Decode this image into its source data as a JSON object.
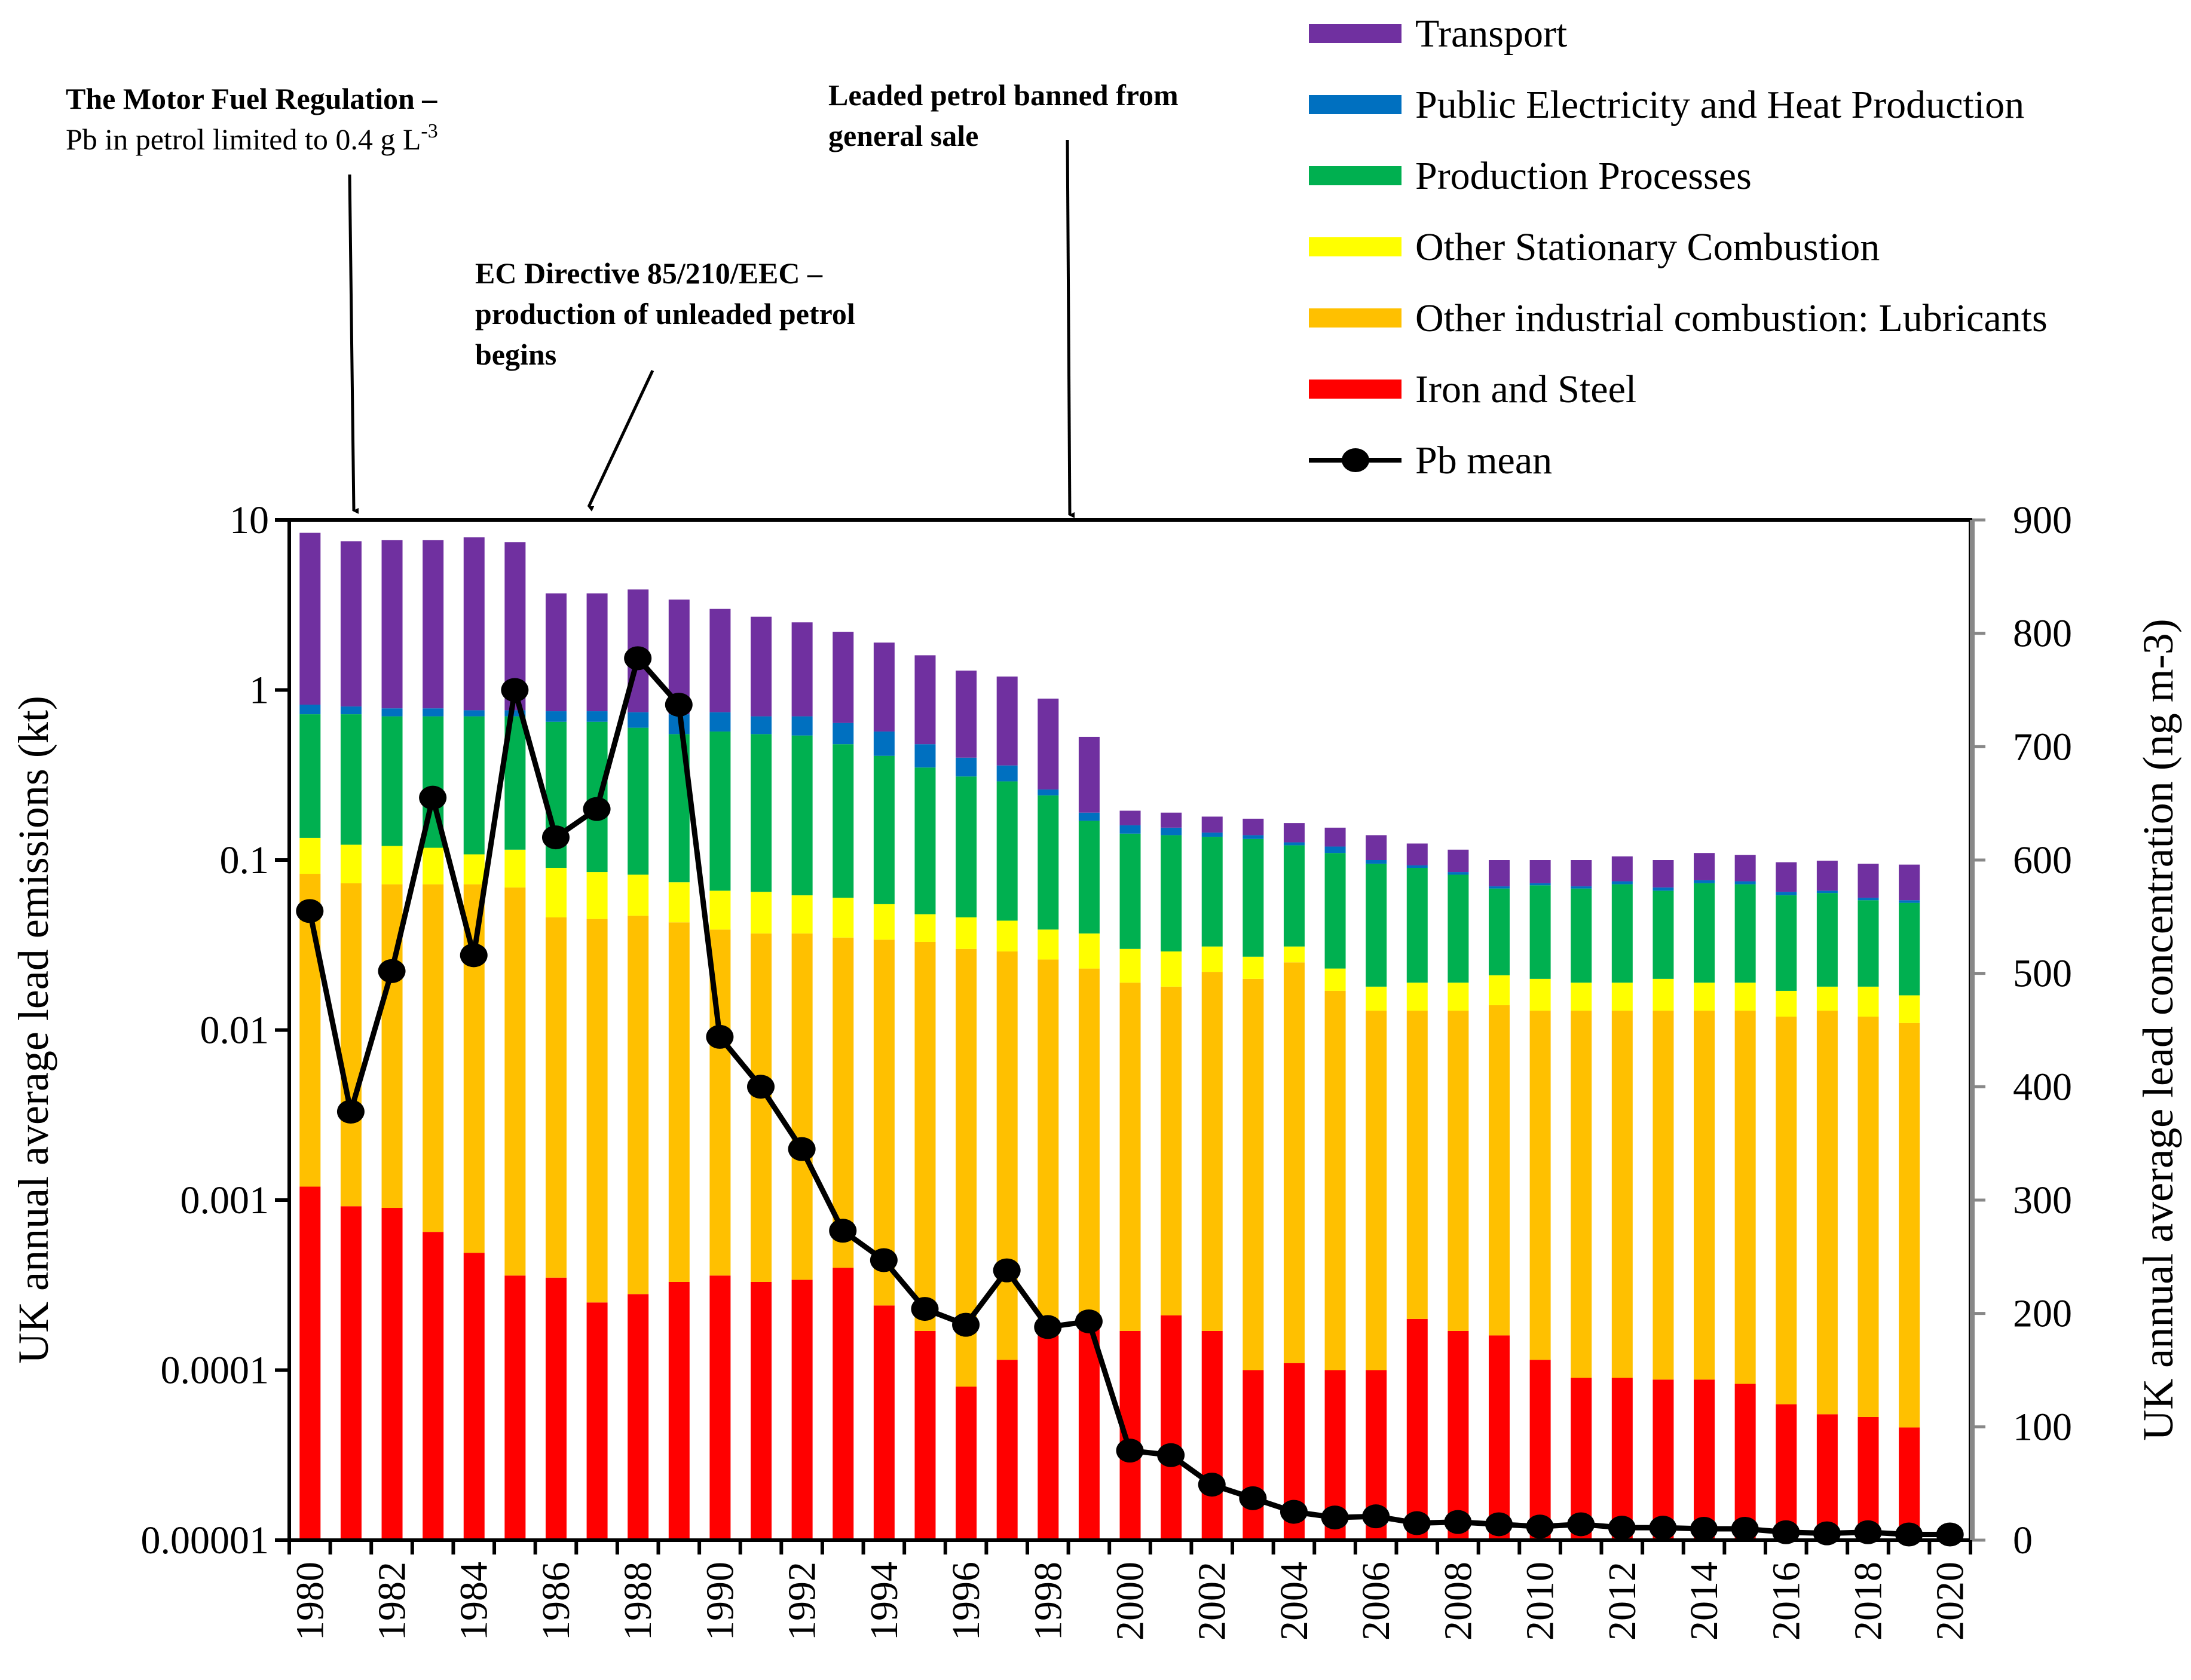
{
  "chart_data": {
    "type": "bar",
    "stacked": true,
    "stack_values_are_cumulative_tops": true,
    "x": [
      1980,
      1981,
      1982,
      1983,
      1984,
      1985,
      1986,
      1987,
      1988,
      1989,
      1990,
      1991,
      1992,
      1993,
      1994,
      1995,
      1996,
      1997,
      1998,
      1999,
      2000,
      2001,
      2002,
      2003,
      2004,
      2005,
      2006,
      2007,
      2008,
      2009,
      2010,
      2011,
      2012,
      2013,
      2014,
      2015,
      2016,
      2017,
      2018,
      2019
    ],
    "xticks": [
      "1980",
      "1982",
      "1984",
      "1986",
      "1988",
      "1990",
      "1992",
      "1994",
      "1996",
      "1998",
      "2000",
      "2002",
      "2004",
      "2006",
      "2008",
      "2010",
      "2012",
      "2014",
      "2016",
      "2018",
      "2020"
    ],
    "ylabel": "UK annual average lead emissions (kt)",
    "ylabel_right": "UK annual average lead concentration  (ng m-3)",
    "yscale": "log",
    "ylim": [
      1e-05,
      10
    ],
    "yticks": [
      "10",
      "1",
      "0.1",
      "0.01",
      "0.001",
      "0.0001",
      "0.00001"
    ],
    "y2lim": [
      0,
      900
    ],
    "y2ticks": [
      "900",
      "800",
      "700",
      "600",
      "500",
      "400",
      "300",
      "200",
      "100",
      "0"
    ],
    "legend_position": "top-right",
    "series": [
      {
        "name": "Iron and Steel",
        "color": "#FF0000",
        "values": [
          0.0012,
          0.00092,
          0.0009,
          0.00065,
          0.00049,
          0.00036,
          0.00035,
          0.00025,
          0.00028,
          0.00033,
          0.00036,
          0.00033,
          0.00034,
          0.0004,
          0.00024,
          0.00017,
          8e-05,
          0.000115,
          0.00016,
          0.00018,
          0.00017,
          0.00021,
          0.00017,
          0.0001,
          0.00011,
          0.0001,
          0.0001,
          0.0002,
          0.00017,
          0.00016,
          0.000115,
          9e-05,
          9e-05,
          8.8e-05,
          8.8e-05,
          8.3e-05,
          6.3e-05,
          5.5e-05,
          5.3e-05,
          4.6e-05
        ]
      },
      {
        "name": "Other industrial combustion: Lubricants",
        "color": "#FFC000",
        "values": [
          0.083,
          0.073,
          0.072,
          0.072,
          0.072,
          0.069,
          0.046,
          0.045,
          0.047,
          0.043,
          0.039,
          0.037,
          0.037,
          0.035,
          0.034,
          0.033,
          0.03,
          0.029,
          0.026,
          0.023,
          0.019,
          0.018,
          0.022,
          0.02,
          0.025,
          0.017,
          0.013,
          0.013,
          0.013,
          0.014,
          0.013,
          0.013,
          0.013,
          0.013,
          0.013,
          0.013,
          0.012,
          0.013,
          0.012,
          0.011
        ]
      },
      {
        "name": "Other Stationary Combustion",
        "color": "#FFFF00",
        "values": [
          0.135,
          0.123,
          0.121,
          0.118,
          0.108,
          0.115,
          0.09,
          0.085,
          0.082,
          0.074,
          0.066,
          0.065,
          0.062,
          0.06,
          0.055,
          0.048,
          0.046,
          0.044,
          0.039,
          0.037,
          0.03,
          0.029,
          0.031,
          0.027,
          0.031,
          0.023,
          0.018,
          0.019,
          0.019,
          0.021,
          0.02,
          0.019,
          0.019,
          0.02,
          0.019,
          0.019,
          0.017,
          0.018,
          0.018,
          0.016
        ]
      },
      {
        "name": "Production Processes",
        "color": "#00B050",
        "values": [
          0.72,
          0.72,
          0.7,
          0.7,
          0.7,
          0.7,
          0.65,
          0.65,
          0.6,
          0.55,
          0.57,
          0.55,
          0.54,
          0.48,
          0.41,
          0.35,
          0.31,
          0.29,
          0.24,
          0.17,
          0.143,
          0.14,
          0.137,
          0.133,
          0.122,
          0.11,
          0.095,
          0.09,
          0.082,
          0.068,
          0.071,
          0.068,
          0.072,
          0.066,
          0.073,
          0.072,
          0.062,
          0.064,
          0.058,
          0.056
        ]
      },
      {
        "name": "Public Electricity and Heat Production",
        "color": "#0070C0",
        "values": [
          0.82,
          0.8,
          0.78,
          0.78,
          0.76,
          0.76,
          0.75,
          0.75,
          0.74,
          0.72,
          0.74,
          0.7,
          0.7,
          0.64,
          0.57,
          0.48,
          0.4,
          0.36,
          0.26,
          0.19,
          0.16,
          0.155,
          0.145,
          0.14,
          0.127,
          0.12,
          0.1,
          0.093,
          0.085,
          0.07,
          0.073,
          0.07,
          0.075,
          0.069,
          0.076,
          0.075,
          0.065,
          0.066,
          0.06,
          0.058
        ]
      },
      {
        "name": "Transport",
        "color": "#7030A0",
        "values": [
          8.4,
          7.5,
          7.6,
          7.6,
          7.9,
          7.4,
          3.7,
          3.7,
          3.9,
          3.4,
          3.0,
          2.7,
          2.5,
          2.2,
          1.9,
          1.6,
          1.3,
          1.2,
          0.89,
          0.53,
          0.195,
          0.19,
          0.18,
          0.175,
          0.165,
          0.155,
          0.14,
          0.125,
          0.115,
          0.1,
          0.1,
          0.1,
          0.105,
          0.1,
          0.11,
          0.107,
          0.097,
          0.099,
          0.095,
          0.094
        ]
      }
    ],
    "line": {
      "name": "Pb mean",
      "axis": "right",
      "color": "#000000",
      "x": [
        1980,
        1981,
        1982,
        1983,
        1984,
        1985,
        1986,
        1987,
        1988,
        1989,
        1990,
        1991,
        1992,
        1993,
        1994,
        1995,
        1996,
        1997,
        1998,
        1999,
        2000,
        2001,
        2002,
        2003,
        2004,
        2005,
        2006,
        2007,
        2008,
        2009,
        2010,
        2011,
        2012,
        2013,
        2014,
        2015,
        2016,
        2017,
        2018,
        2019,
        2020
      ],
      "values": [
        555,
        378,
        502,
        655,
        516,
        750,
        620,
        645,
        778,
        737,
        444,
        400,
        345,
        273,
        247,
        204,
        190,
        238,
        188,
        193,
        79,
        75,
        49,
        37,
        25,
        20,
        21,
        15,
        16,
        14,
        12,
        14,
        11,
        11,
        10,
        10,
        7,
        6,
        7,
        5,
        5
      ]
    },
    "legend": [
      "Transport",
      "Public Electricity and Heat Production",
      "Production Processes",
      "Other Stationary Combustion",
      "Other industrial combustion: Lubricants",
      "Iron and Steel",
      "Pb mean"
    ],
    "annotations": [
      {
        "year": 1981,
        "title": "The Motor Fuel Regulation –",
        "text": "Pb in petrol limited to 0.4 g L",
        "sup": "-3"
      },
      {
        "year": 1987,
        "lines": [
          "EC Directive 85/210/EEC –",
          "production of unleaded petrol",
          "begins"
        ]
      },
      {
        "year": 1999,
        "lines": [
          "Leaded petrol banned from",
          "general sale"
        ]
      }
    ]
  }
}
